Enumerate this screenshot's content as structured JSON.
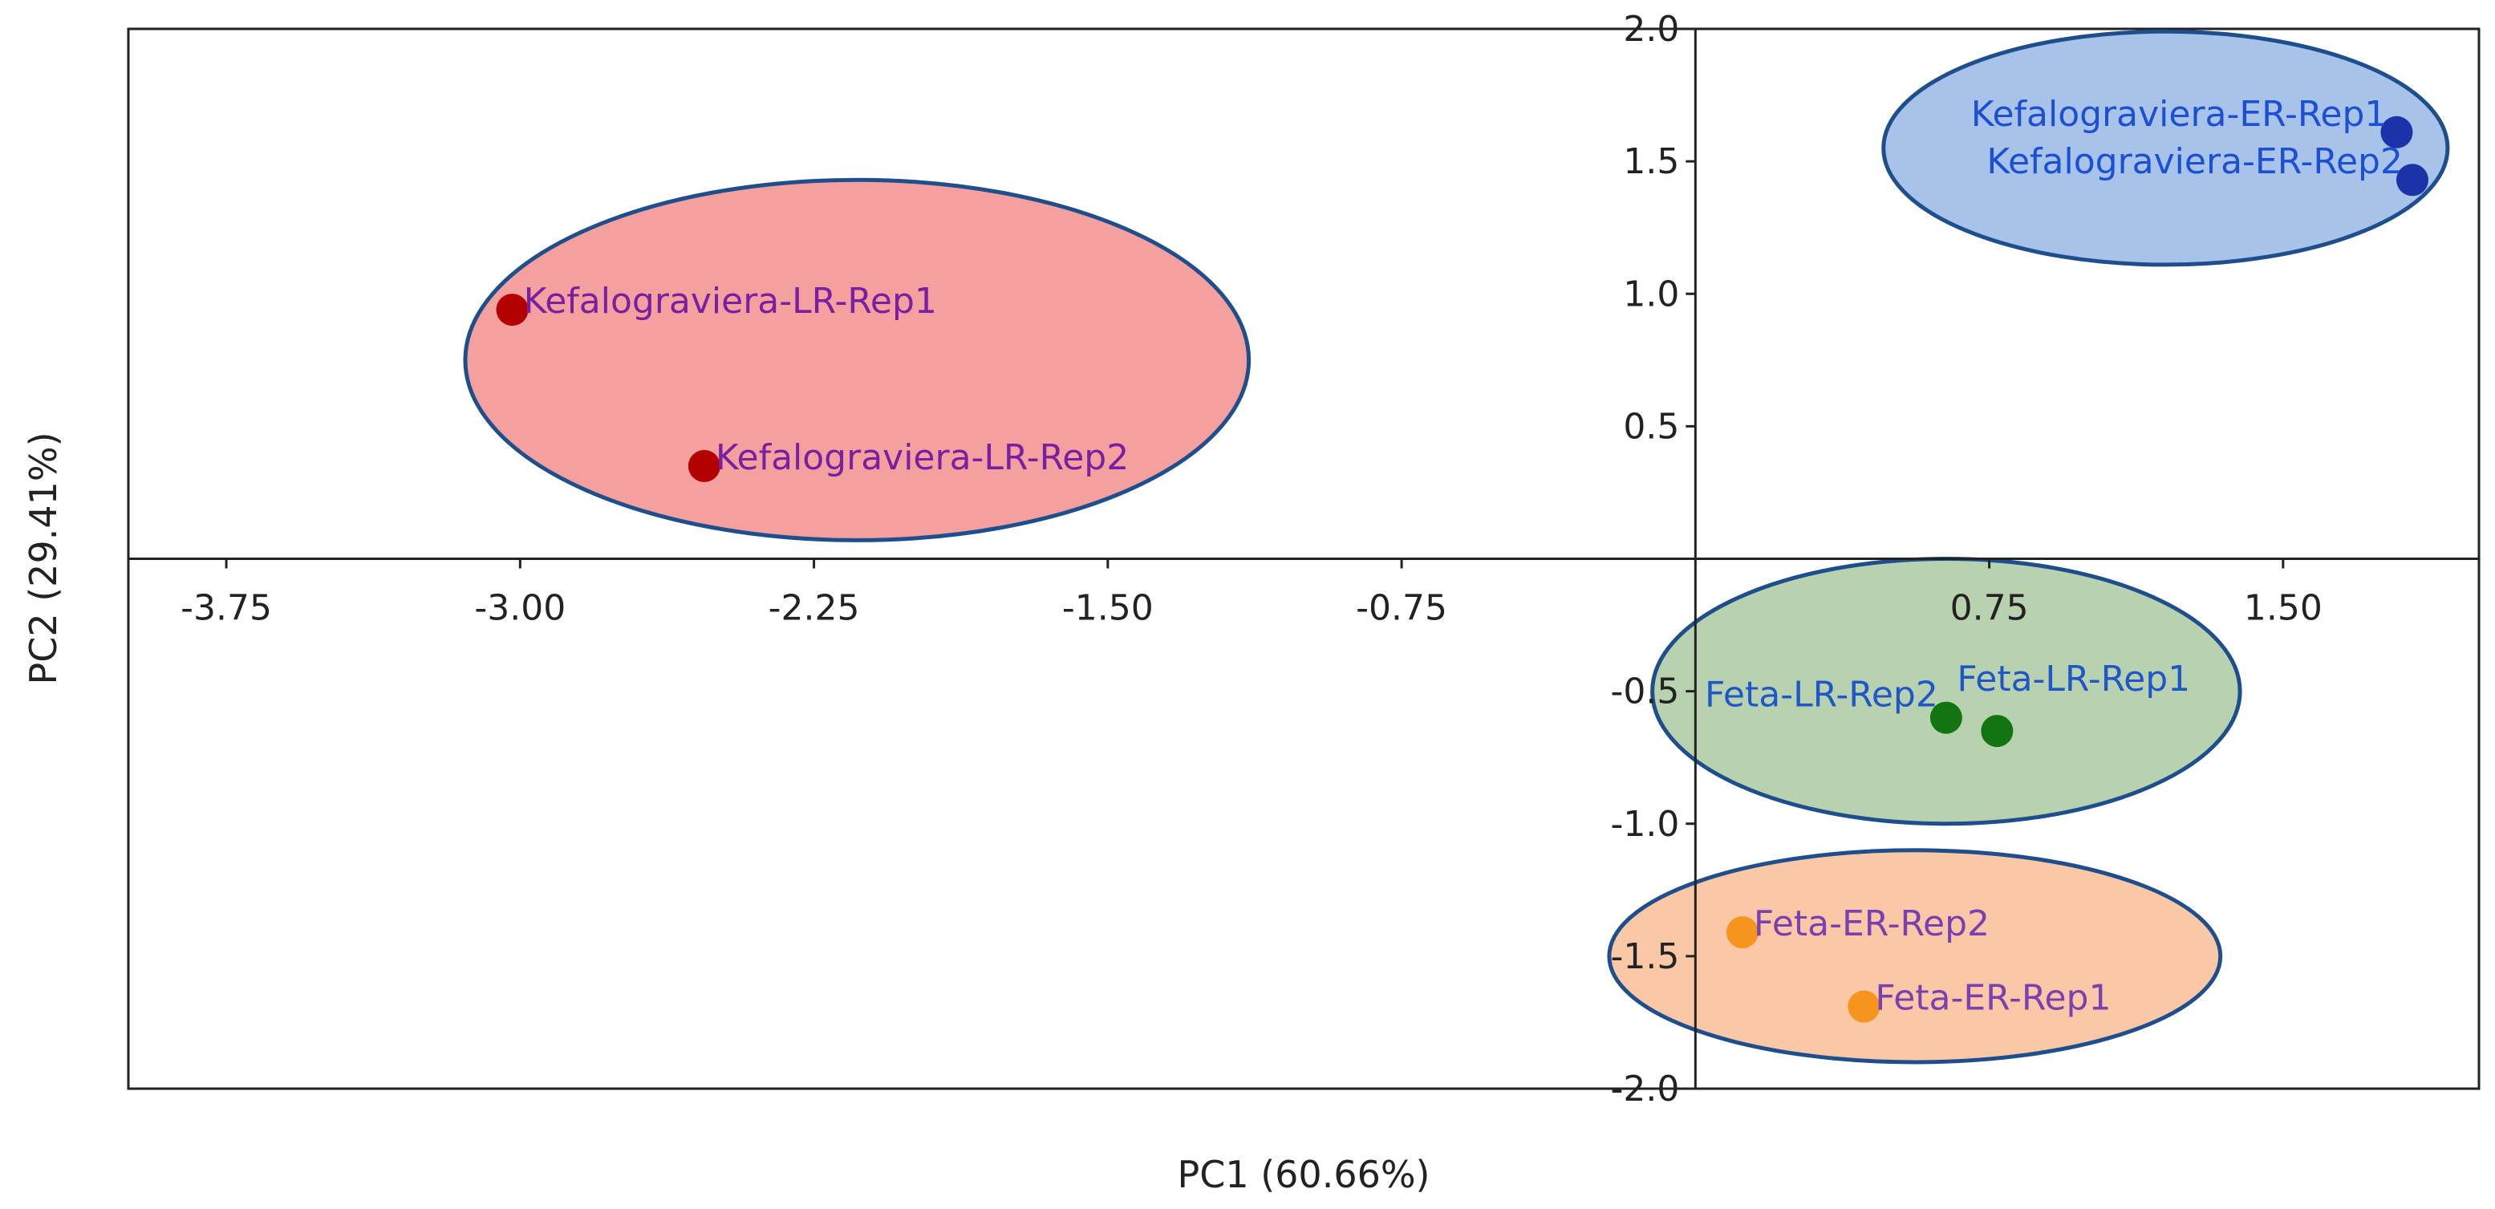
{
  "chart_data": {
    "type": "scatter",
    "xlabel": "PC1 (60.66%)",
    "ylabel": "PC2 (29.41%)",
    "xlim": [
      -4.0,
      2.0
    ],
    "ylim": [
      -2.0,
      2.0
    ],
    "x_ticks": [
      {
        "value": -3.75,
        "label": "-3.75"
      },
      {
        "value": -3.0,
        "label": "-3.00"
      },
      {
        "value": -2.25,
        "label": "-2.25"
      },
      {
        "value": -1.5,
        "label": "-1.50"
      },
      {
        "value": -0.75,
        "label": "-0.75"
      },
      {
        "value": 0.75,
        "label": "0.75"
      },
      {
        "value": 1.5,
        "label": "1.50"
      }
    ],
    "y_ticks": [
      {
        "value": 2.0,
        "label": "2.0"
      },
      {
        "value": 1.5,
        "label": "1.5"
      },
      {
        "value": 1.0,
        "label": "1.0"
      },
      {
        "value": 0.5,
        "label": "0.5"
      },
      {
        "value": -0.5,
        "label": "-0.5"
      },
      {
        "value": -1.0,
        "label": "-1.0"
      },
      {
        "value": -1.5,
        "label": "-1.5"
      },
      {
        "value": -2.0,
        "label": "-2.0"
      }
    ],
    "groups": [
      {
        "id": "kefalograviera-lr",
        "ellipse": {
          "cx": -2.14,
          "cy": 0.75,
          "rx": 1.0,
          "ry": 0.68
        },
        "fill": "#f4a09e",
        "stroke": "#1f4e8c",
        "point_color": "#b30000",
        "label_color": "#7a1fa2",
        "points": [
          {
            "name": "Kefalograviera-LR-Rep1",
            "x": -3.02,
            "y": 0.94,
            "label_side": "right"
          },
          {
            "name": "Kefalograviera-LR-Rep2",
            "x": -2.53,
            "y": 0.35,
            "label_side": "right"
          }
        ]
      },
      {
        "id": "kefalograviera-er",
        "ellipse": {
          "cx": 1.2,
          "cy": 1.55,
          "rx": 0.72,
          "ry": 0.44
        },
        "fill": "#a7c3ea",
        "stroke": "#1f4e8c",
        "point_color": "#1c32a8",
        "label_color": "#1d4fd1",
        "points": [
          {
            "name": "Kefalograviera-ER-Rep1",
            "x": 1.79,
            "y": 1.61,
            "label_side": "left"
          },
          {
            "name": "Kefalograviera-ER-Rep2",
            "x": 1.83,
            "y": 1.43,
            "label_side": "left"
          }
        ]
      },
      {
        "id": "feta-lr",
        "ellipse": {
          "cx": 0.64,
          "cy": -0.5,
          "rx": 0.75,
          "ry": 0.5
        },
        "fill": "#b8d2b0",
        "stroke": "#1f4e8c",
        "point_color": "#127512",
        "label_color": "#1f57c9",
        "points": [
          {
            "name": "Feta-LR-Rep2",
            "x": 0.64,
            "y": -0.6,
            "label_side": "upper-left"
          },
          {
            "name": "Feta-LR-Rep1",
            "x": 0.77,
            "y": -0.65,
            "label_side": "upper-right"
          }
        ]
      },
      {
        "id": "feta-er",
        "ellipse": {
          "cx": 0.56,
          "cy": -1.5,
          "rx": 0.78,
          "ry": 0.4
        },
        "fill": "#fac8a6",
        "stroke": "#1f4e8c",
        "point_color": "#f7941d",
        "label_color": "#7a3fb0",
        "points": [
          {
            "name": "Feta-ER-Rep2",
            "x": 0.12,
            "y": -1.41,
            "label_side": "right"
          },
          {
            "name": "Feta-ER-Rep1",
            "x": 0.43,
            "y": -1.69,
            "label_side": "right"
          }
        ]
      }
    ]
  }
}
